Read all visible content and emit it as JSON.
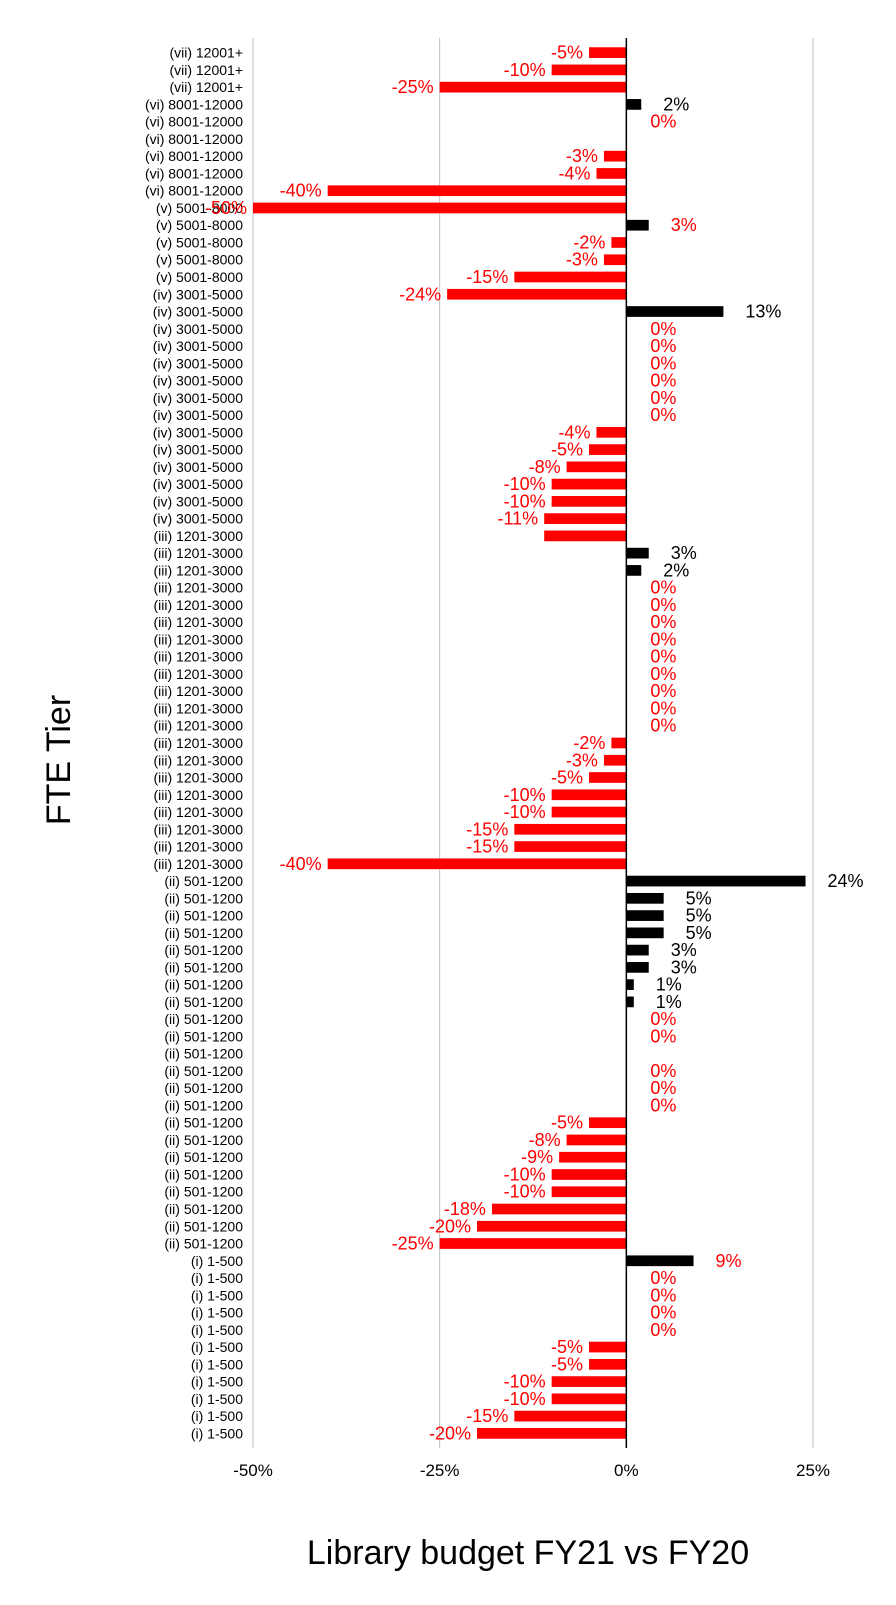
{
  "colors": {
    "negative": "#ff0000",
    "positive": "#000000",
    "zero_label": "#ff0000",
    "grid": "#c0c0c0",
    "axis": "#000000"
  },
  "chart_data": {
    "type": "bar",
    "orientation": "horizontal",
    "xlabel": "Library budget FY21 vs FY20",
    "ylabel": "FTE Tier",
    "xlim": [
      -50,
      25
    ],
    "x_ticks": [
      -50,
      -25,
      0,
      25
    ],
    "x_tick_labels": [
      "-50%",
      "-25%",
      "0%",
      "25%"
    ],
    "grid": "vertical",
    "legend": "none",
    "categories": [
      "(vii) 12001+",
      "(vii) 12001+",
      "(vii) 12001+",
      "(vi) 8001-12000",
      "(vi) 8001-12000",
      "(vi) 8001-12000",
      "(vi) 8001-12000",
      "(vi) 8001-12000",
      "(vi) 8001-12000",
      "(v) 5001-8000",
      "(v) 5001-8000",
      "(v) 5001-8000",
      "(v) 5001-8000",
      "(v) 5001-8000",
      "(iv) 3001-5000",
      "(iv) 3001-5000",
      "(iv) 3001-5000",
      "(iv) 3001-5000",
      "(iv) 3001-5000",
      "(iv) 3001-5000",
      "(iv) 3001-5000",
      "(iv) 3001-5000",
      "(iv) 3001-5000",
      "(iv) 3001-5000",
      "(iv) 3001-5000",
      "(iv) 3001-5000",
      "(iv) 3001-5000",
      "(iv) 3001-5000",
      "(iii) 1201-3000",
      "(iii) 1201-3000",
      "(iii) 1201-3000",
      "(iii) 1201-3000",
      "(iii) 1201-3000",
      "(iii) 1201-3000",
      "(iii) 1201-3000",
      "(iii) 1201-3000",
      "(iii) 1201-3000",
      "(iii) 1201-3000",
      "(iii) 1201-3000",
      "(iii) 1201-3000",
      "(iii) 1201-3000",
      "(iii) 1201-3000",
      "(iii) 1201-3000",
      "(iii) 1201-3000",
      "(iii) 1201-3000",
      "(iii) 1201-3000",
      "(iii) 1201-3000",
      "(iii) 1201-3000",
      "(ii) 501-1200",
      "(ii) 501-1200",
      "(ii) 501-1200",
      "(ii) 501-1200",
      "(ii) 501-1200",
      "(ii) 501-1200",
      "(ii) 501-1200",
      "(ii) 501-1200",
      "(ii) 501-1200",
      "(ii) 501-1200",
      "(ii) 501-1200",
      "(ii) 501-1200",
      "(ii) 501-1200",
      "(ii) 501-1200",
      "(ii) 501-1200",
      "(ii) 501-1200",
      "(ii) 501-1200",
      "(ii) 501-1200",
      "(ii) 501-1200",
      "(ii) 501-1200",
      "(ii) 501-1200",
      "(ii) 501-1200",
      "(i) 1-500",
      "(i) 1-500",
      "(i) 1-500",
      "(i) 1-500",
      "(i) 1-500",
      "(i) 1-500",
      "(i) 1-500",
      "(i) 1-500",
      "(i) 1-500",
      "(i) 1-500",
      "(i) 1-500"
    ],
    "values": [
      -5,
      -10,
      -25,
      2,
      0,
      0,
      -3,
      -4,
      -40,
      -50,
      3,
      -2,
      -3,
      -15,
      -24,
      13,
      0,
      0,
      0,
      0,
      0,
      0,
      -4,
      -5,
      -8,
      -10,
      -10,
      -11,
      -11,
      3,
      2,
      0,
      0,
      0,
      0,
      0,
      0,
      0,
      0,
      0,
      -2,
      -3,
      -5,
      -10,
      -10,
      -15,
      -15,
      -40,
      24,
      5,
      5,
      5,
      3,
      3,
      1,
      1,
      0,
      0,
      0,
      0,
      0,
      0,
      -5,
      -8,
      -9,
      -10,
      -10,
      -18,
      -20,
      -25,
      9,
      0,
      0,
      0,
      0,
      -5,
      -5,
      -10,
      -10,
      -15,
      -20
    ],
    "data_labels": [
      "-5%",
      "-10%",
      "-25%",
      "2%",
      "0%",
      "",
      "-3%",
      "-4%",
      "-40%",
      "-50%",
      "3%",
      "-2%",
      "-3%",
      "-15%",
      "-24%",
      "13%",
      "0%",
      "0%",
      "0%",
      "0%",
      "0%",
      "0%",
      "-4%",
      "-5%",
      "-8%",
      "-10%",
      "-10%",
      "-11%",
      "",
      "3%",
      "2%",
      "0%",
      "0%",
      "0%",
      "0%",
      "0%",
      "0%",
      "0%",
      "0%",
      "0%",
      "-2%",
      "-3%",
      "-5%",
      "-10%",
      "-10%",
      "-15%",
      "-15%",
      "-40%",
      "24%",
      "5%",
      "5%",
      "5%",
      "3%",
      "3%",
      "1%",
      "1%",
      "0%",
      "0%",
      "",
      "0%",
      "0%",
      "0%",
      "-5%",
      "-8%",
      "-9%",
      "-10%",
      "-10%",
      "-18%",
      "-20%",
      "-25%",
      "9%",
      "0%",
      "0%",
      "0%",
      "0%",
      "-5%",
      "-5%",
      "-10%",
      "-10%",
      "-15%",
      "-20%"
    ]
  }
}
